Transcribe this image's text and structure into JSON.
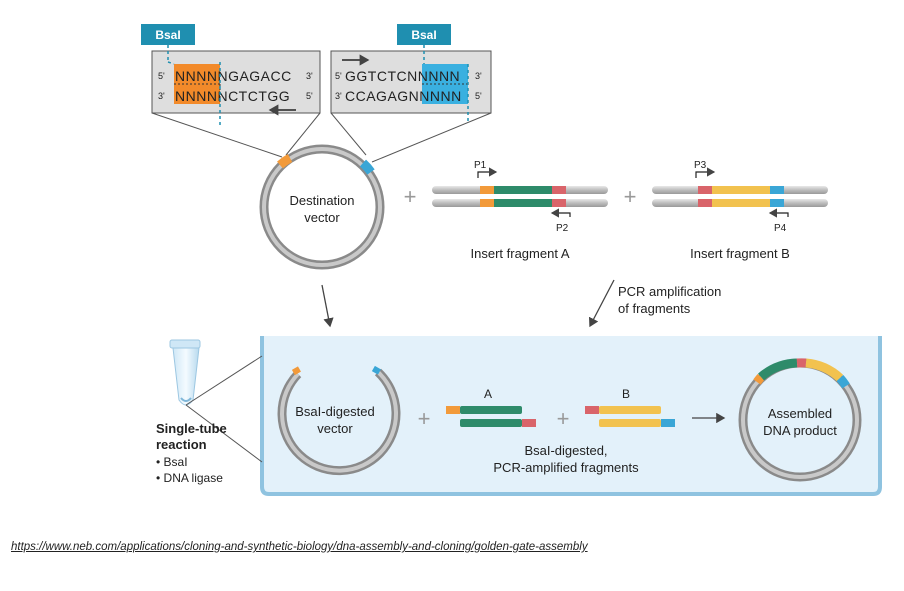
{
  "enzyme_tag_left": "BsaI",
  "enzyme_tag_right": "BsaI",
  "seq_left": {
    "top_end5": "5'",
    "top_seq_overhang": "NNNN",
    "top_seq_rest": "NGAGACC",
    "top_end3": "3'",
    "bot_end3": "3'",
    "bot_seq_overhang": "NNNN",
    "bot_seq_rest": "NCTCTGG",
    "bot_end5": "5'"
  },
  "seq_right": {
    "top_end5": "5'",
    "top_seq_rest": "GGTCTCN",
    "top_seq_overhang": "NNNN",
    "top_end3": "3'",
    "bot_end3": "3'",
    "bot_seq_rest": "CCAGAGN",
    "bot_seq_overhang": "NNNN",
    "bot_end5": "5'"
  },
  "destination_vector_label": [
    "Destination",
    "vector"
  ],
  "plus": "+",
  "primers": {
    "p1": "P1",
    "p2": "P2",
    "p3": "P3",
    "p4": "P4"
  },
  "insert_a_label": "Insert fragment A",
  "insert_b_label": "Insert fragment B",
  "pcr_label": [
    "PCR amplification",
    "of fragments"
  ],
  "digested_vector_label": [
    "BsaI-digested",
    "vector"
  ],
  "fragment_a_label": "A",
  "fragment_b_label": "B",
  "digested_fragments_label": [
    "BsaI-digested,",
    "PCR-amplified fragments"
  ],
  "assembled_label": [
    "Assembled",
    "DNA product"
  ],
  "reaction_title": [
    "Single-tube",
    "reaction"
  ],
  "reaction_items": [
    "• BsaI",
    "• DNA ligase"
  ],
  "source_url": "https://www.neb.com/applications/cloning-and-synthetic-biology/dna-assembly-and-cloning/golden-gate-assembly",
  "colors": {
    "bsai_tag": "#1f8fb0",
    "orange": "#f29a3a",
    "blue": "#3aa6d6",
    "green": "#2e8b6a",
    "yellow": "#f2c24f",
    "red": "#d9646a",
    "panel": "#e3f1fa",
    "panel_border": "#8fc3e0"
  }
}
